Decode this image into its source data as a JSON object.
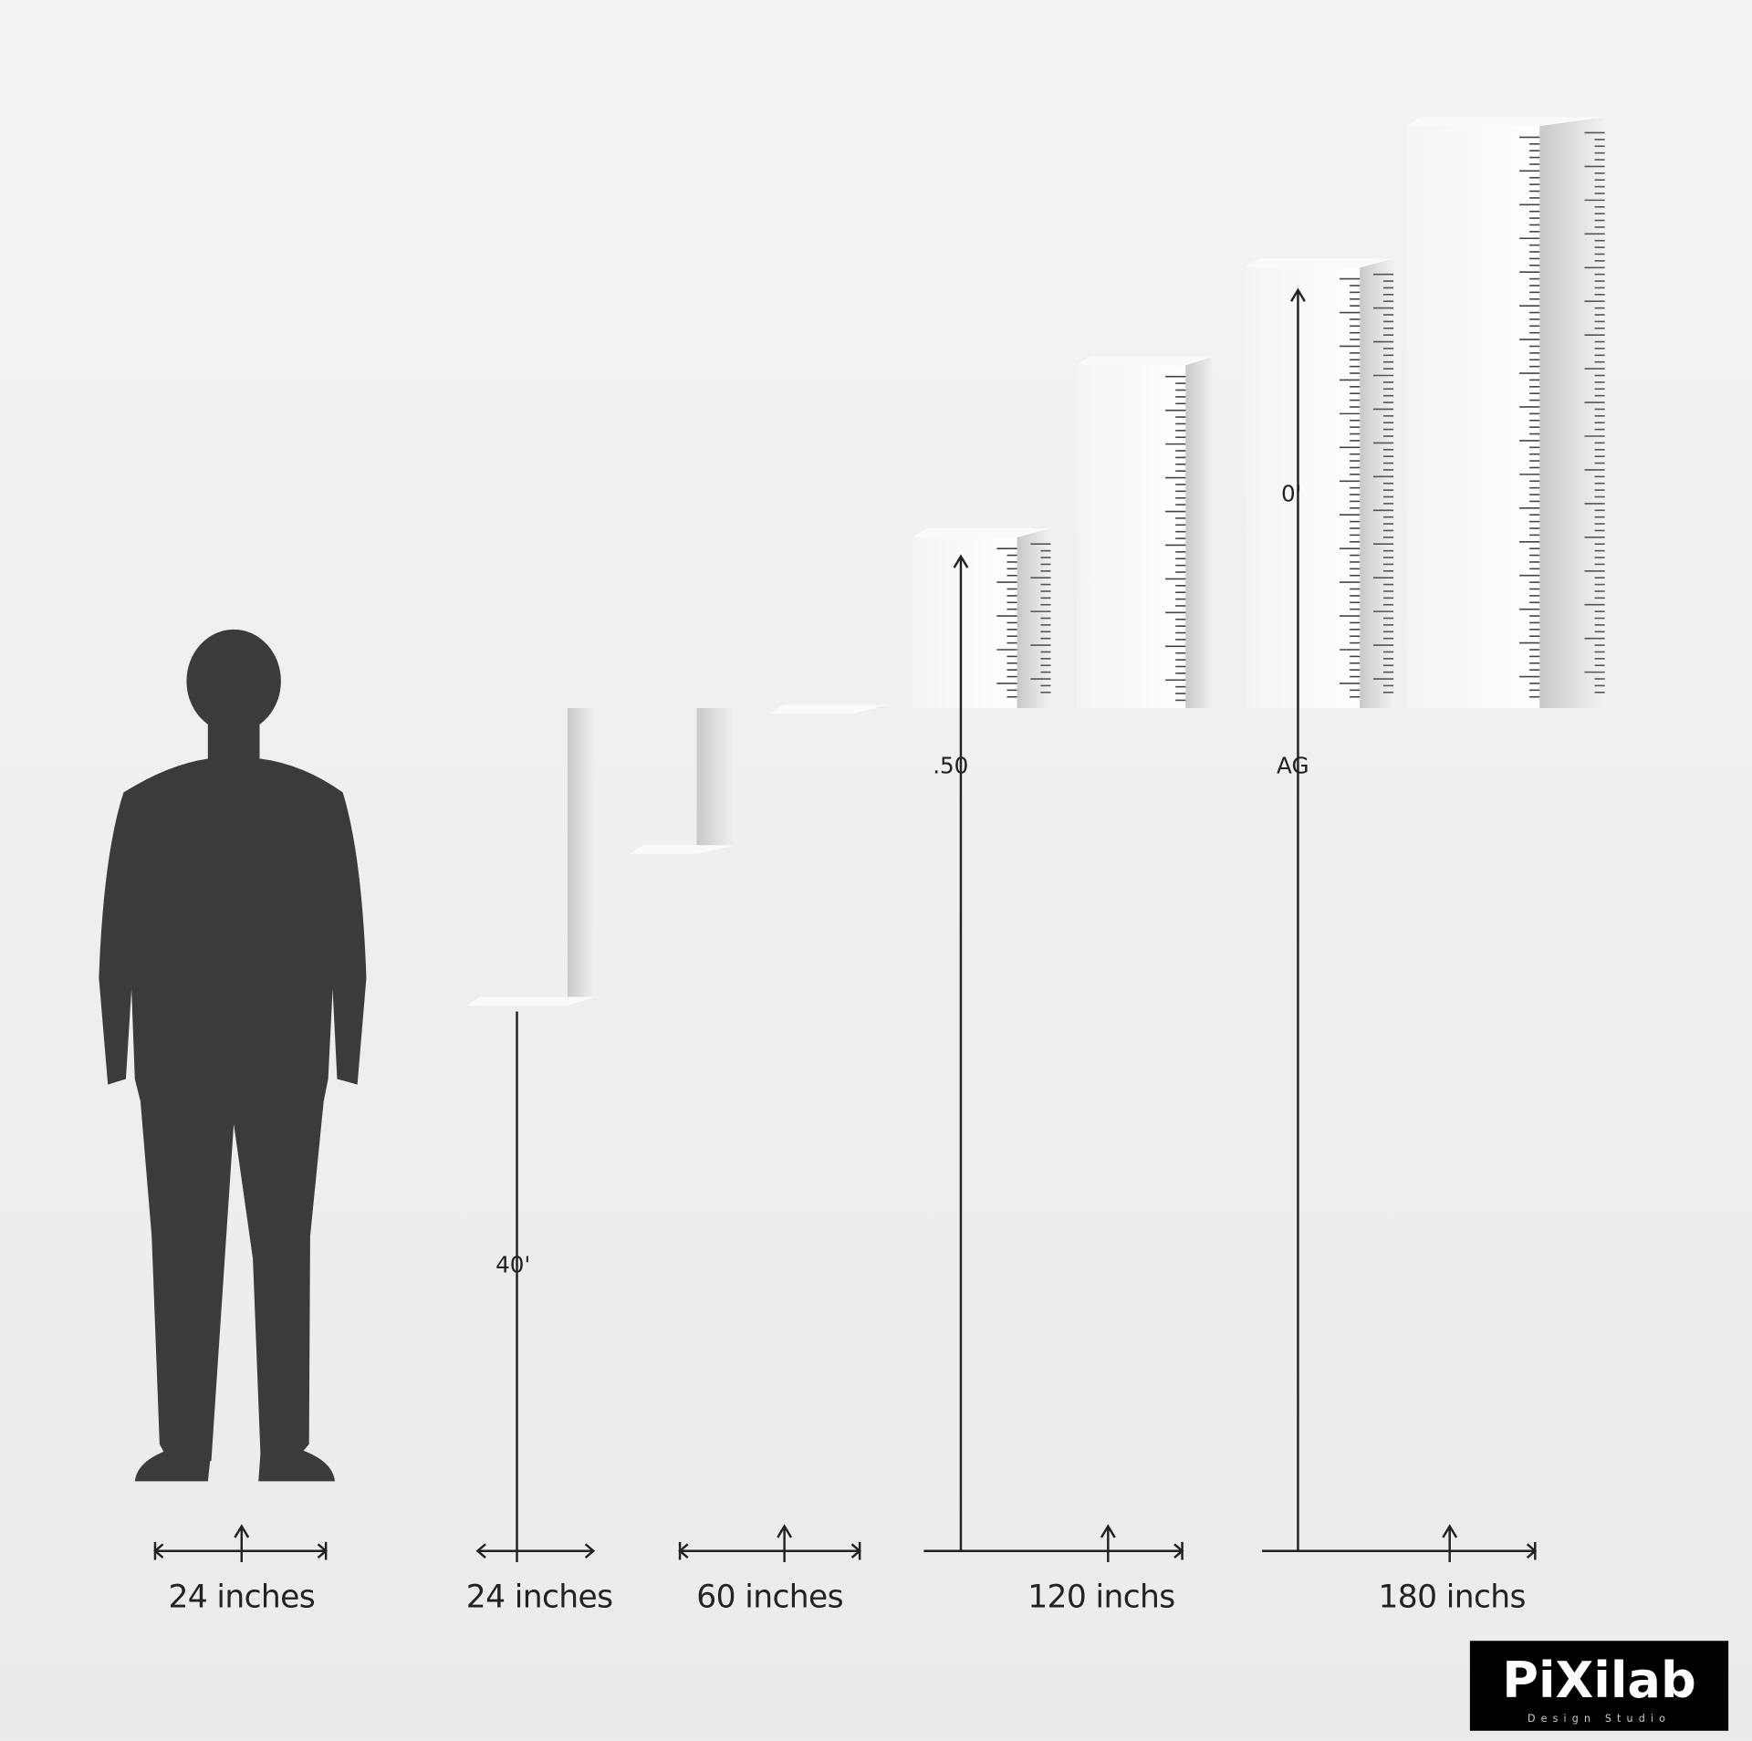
{
  "figure": {
    "dimension_labels": [
      "24 inches",
      "24 inches",
      "60 inches",
      "120 inchs",
      "180 inchs"
    ],
    "ruler_labels": [
      "40'",
      ".50",
      "AG",
      "0'"
    ]
  },
  "logo": {
    "name": "PiXilab",
    "tagline": "Design Studio"
  }
}
